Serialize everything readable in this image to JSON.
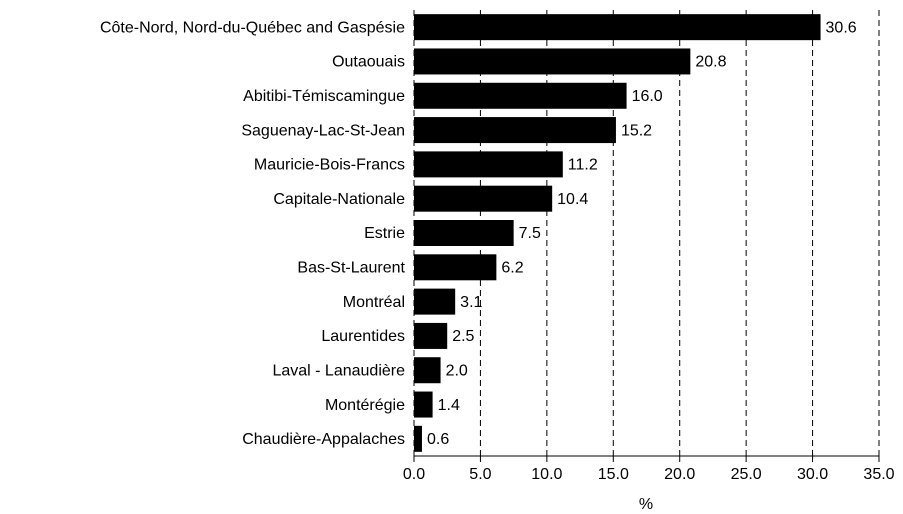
{
  "chart_data": {
    "type": "bar",
    "orientation": "horizontal",
    "x_label": "%",
    "categories": [
      "Côte-Nord, Nord-du-Québec and Gaspésie",
      "Outaouais",
      "Abitibi-Témiscamingue",
      "Saguenay-Lac-St-Jean",
      "Mauricie-Bois-Francs",
      "Capitale-Nationale",
      "Estrie",
      "Bas-St-Laurent",
      "Montréal",
      "Laurentides",
      "Laval - Lanaudière",
      "Montérégie",
      "Chaudière-Appalaches"
    ],
    "values": [
      30.6,
      20.8,
      16,
      15.2,
      11.2,
      10.4,
      7.5,
      6.2,
      3.1,
      2.5,
      2,
      1.4,
      0.6
    ],
    "value_labels": [
      "30.6",
      "20.8",
      "16.0",
      "15.2",
      "11.2",
      "10.4",
      "7.5",
      "6.2",
      "3.1",
      "2.5",
      "2.0",
      "1.4",
      "0.6"
    ],
    "color": "#000000",
    "xlim": [
      0,
      35
    ],
    "xticks": [
      {
        "value": 0,
        "label": "0.0"
      },
      {
        "value": 5,
        "label": "5.0"
      },
      {
        "value": 10,
        "label": "10.0"
      },
      {
        "value": 15,
        "label": "15.0"
      },
      {
        "value": 20,
        "label": "20.0"
      },
      {
        "value": 25,
        "label": "25.0"
      },
      {
        "value": 30,
        "label": "30.0"
      },
      {
        "value": 35,
        "label": "35.0"
      }
    ],
    "grid": true
  }
}
